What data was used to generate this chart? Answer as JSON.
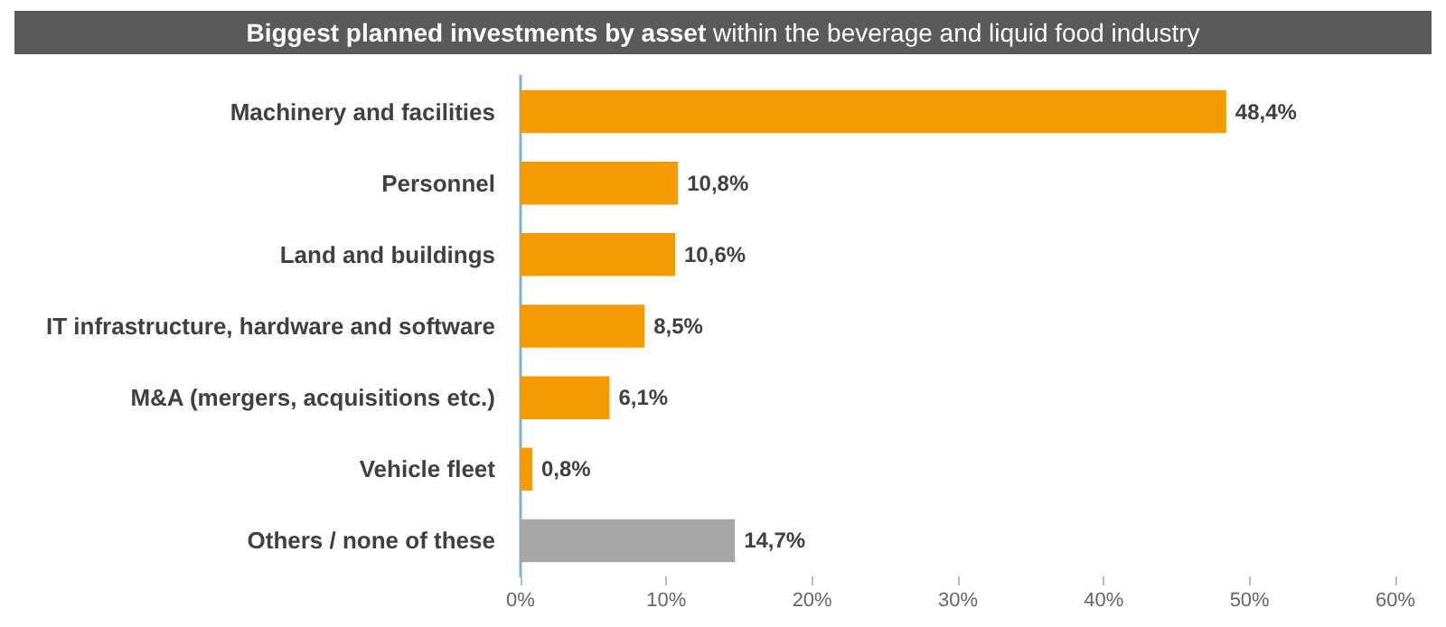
{
  "chart_data": {
    "type": "bar",
    "orientation": "horizontal",
    "title": "Biggest planned investments by asset",
    "subtitle": "within the beverage and liquid food industry",
    "categories": [
      "Machinery and facilities",
      "Personnel",
      "Land and buildings",
      "IT infrastructure, hardware and software",
      "M&A (mergers, acquisitions etc.)",
      "Vehicle fleet",
      "Others / none of these"
    ],
    "values": [
      48.4,
      10.8,
      10.6,
      8.5,
      6.1,
      0.8,
      14.7
    ],
    "colors": [
      "#f59a00",
      "#f59a00",
      "#f59a00",
      "#f59a00",
      "#f59a00",
      "#f59a00",
      "#a6a6a6"
    ],
    "value_labels": [
      "48,4%",
      "10,8%",
      "10,6%",
      "8,5%",
      "6,1%",
      "0,8%",
      "14,7%"
    ],
    "xlim": [
      0,
      60
    ],
    "xticks": [
      {
        "value": 0,
        "label": "0%"
      },
      {
        "value": 10,
        "label": "10%"
      },
      {
        "value": 20,
        "label": "20%"
      },
      {
        "value": 30,
        "label": "30%"
      },
      {
        "value": 40,
        "label": "40%"
      },
      {
        "value": 50,
        "label": "50%"
      },
      {
        "value": 60,
        "label": "60%"
      }
    ],
    "grid": false
  }
}
